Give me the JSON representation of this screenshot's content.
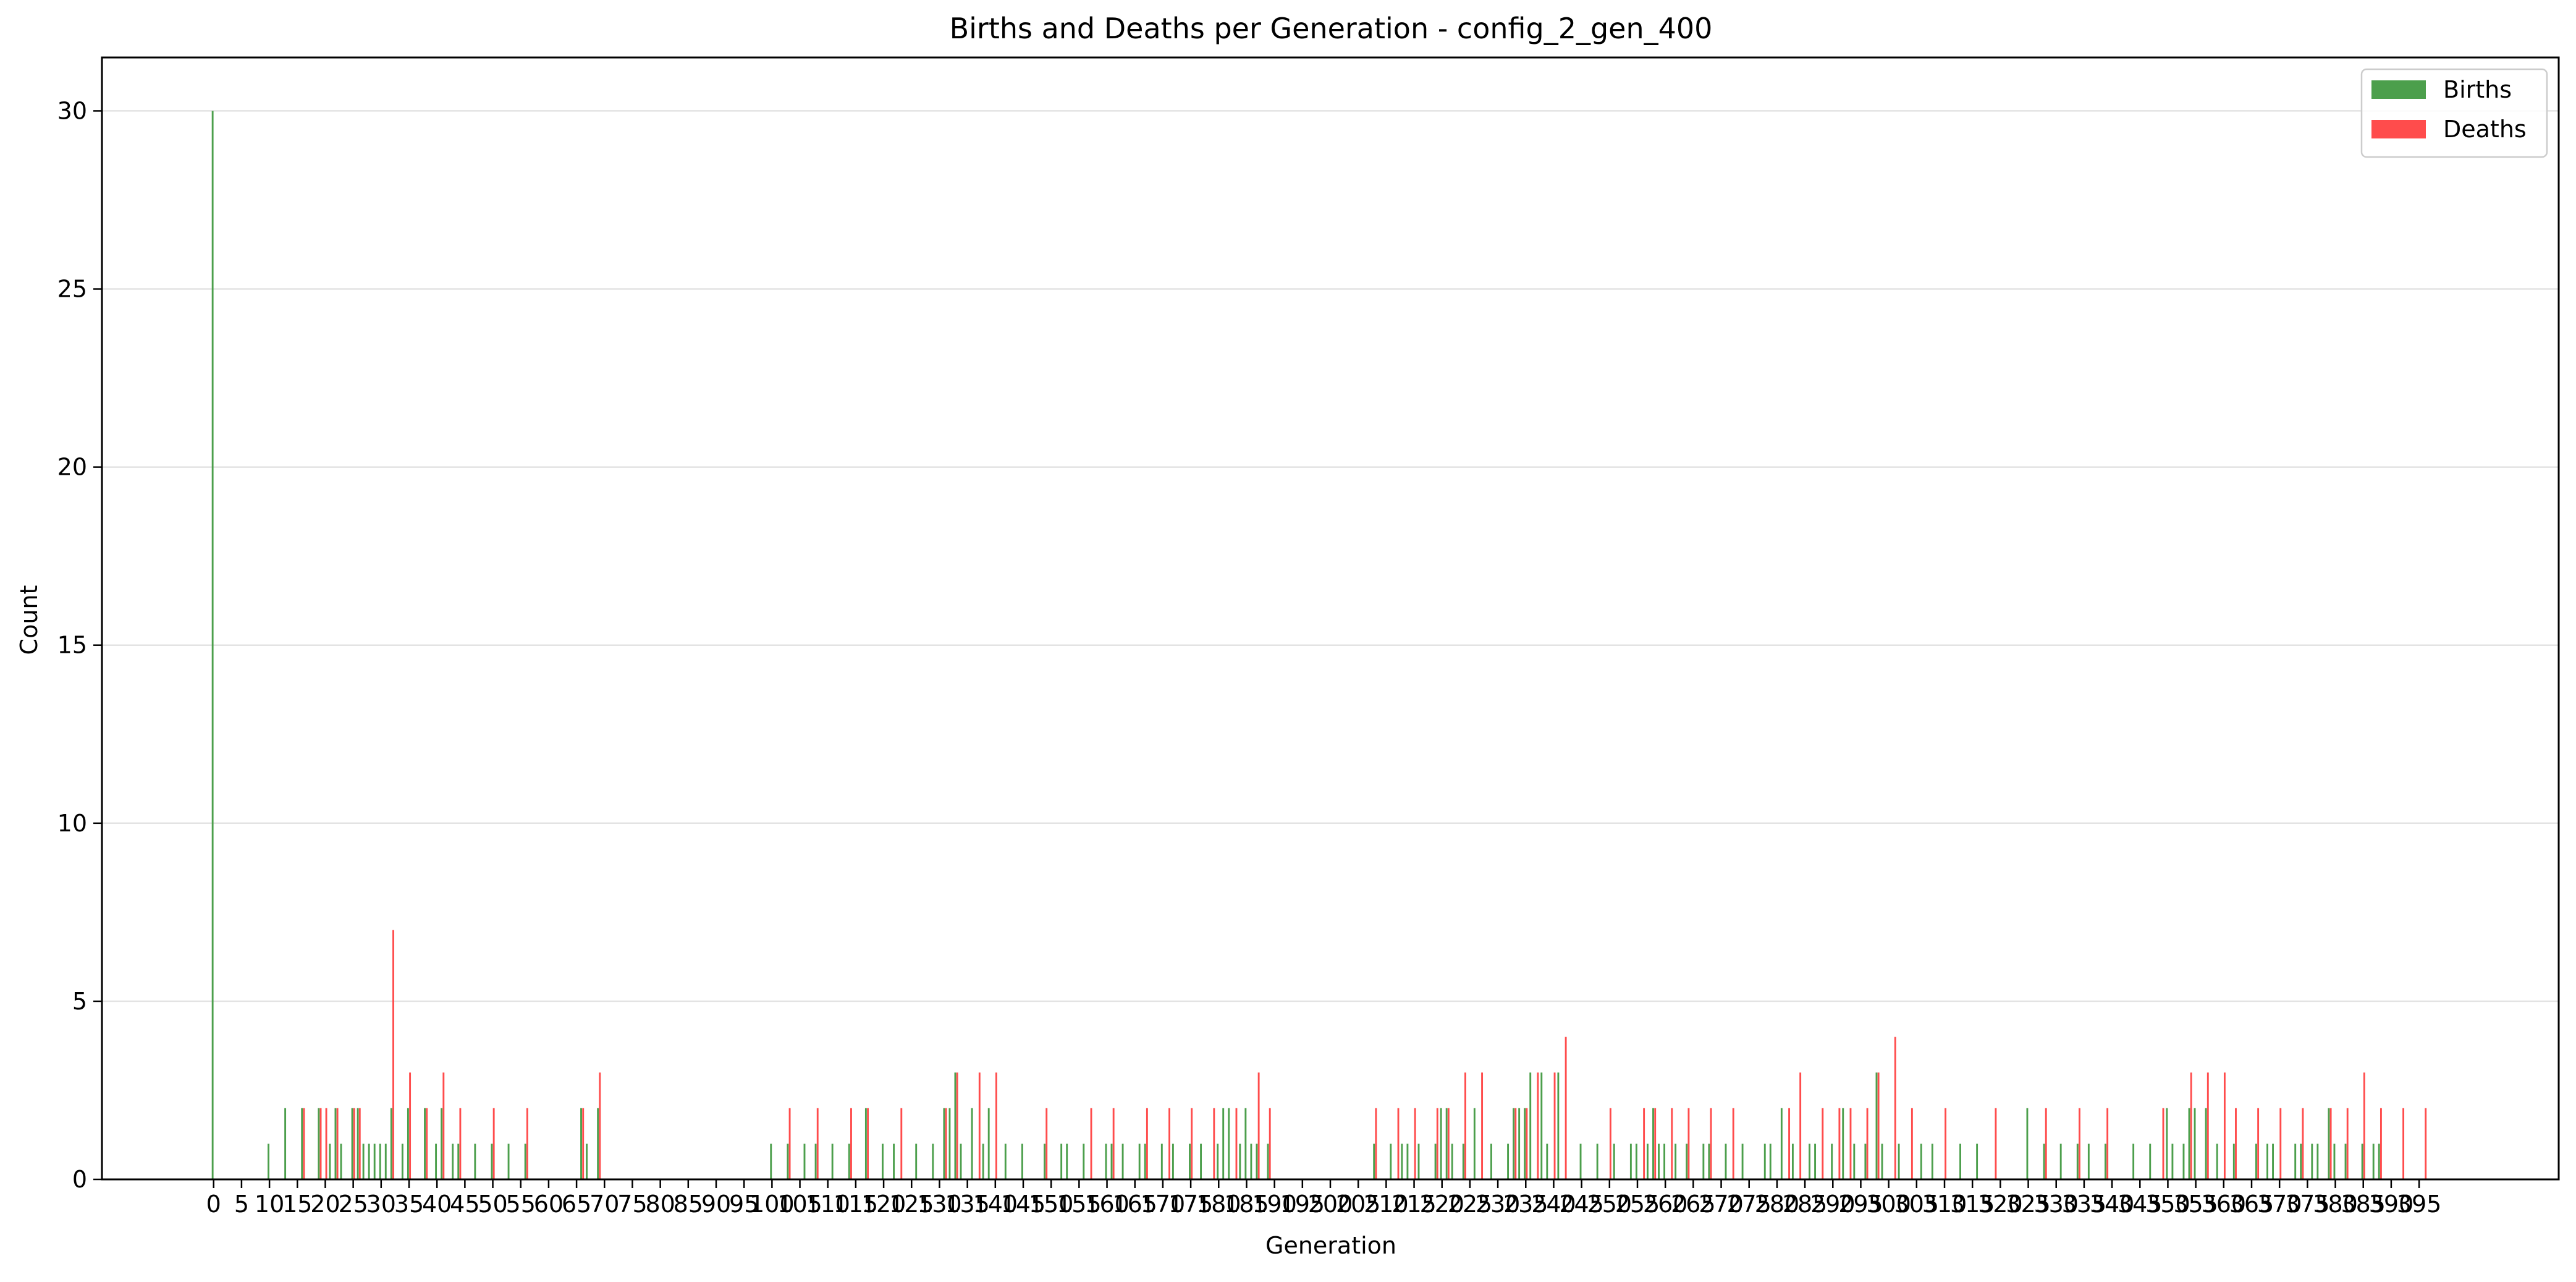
{
  "chart_data": {
    "type": "bar",
    "title": "Births and Deaths per Generation - config_2_gen_400",
    "xlabel": "Generation",
    "ylabel": "Count",
    "xlim": [
      -20,
      420
    ],
    "ylim": [
      0,
      31.5
    ],
    "x_ticks": [
      0,
      5,
      10,
      15,
      20,
      25,
      30,
      35,
      40,
      45,
      50,
      55,
      60,
      65,
      70,
      75,
      80,
      85,
      90,
      95,
      100,
      105,
      110,
      115,
      120,
      125,
      130,
      135,
      140,
      145,
      150,
      155,
      160,
      165,
      170,
      175,
      180,
      185,
      190,
      195,
      200,
      205,
      210,
      215,
      220,
      225,
      230,
      235,
      240,
      245,
      250,
      255,
      260,
      265,
      270,
      275,
      280,
      285,
      290,
      295,
      300,
      305,
      310,
      315,
      320,
      325,
      330,
      335,
      340,
      345,
      350,
      355,
      360,
      365,
      370,
      375,
      380,
      385,
      390,
      395
    ],
    "y_ticks": [
      0,
      5,
      10,
      15,
      20,
      25,
      30
    ],
    "grid": "y",
    "legend_position": "top-right",
    "series": [
      {
        "name": "Births",
        "color": "#4c9f4c",
        "points": [
          [
            0,
            30
          ],
          [
            10,
            1
          ],
          [
            13,
            2
          ],
          [
            16,
            2
          ],
          [
            19,
            2
          ],
          [
            21,
            1
          ],
          [
            22,
            2
          ],
          [
            23,
            1
          ],
          [
            25,
            2
          ],
          [
            26,
            2
          ],
          [
            27,
            1
          ],
          [
            28,
            1
          ],
          [
            29,
            1
          ],
          [
            30,
            1
          ],
          [
            31,
            1
          ],
          [
            32,
            2
          ],
          [
            34,
            1
          ],
          [
            35,
            2
          ],
          [
            38,
            2
          ],
          [
            40,
            1
          ],
          [
            41,
            2
          ],
          [
            43,
            1
          ],
          [
            44,
            1
          ],
          [
            47,
            1
          ],
          [
            50,
            1
          ],
          [
            53,
            1
          ],
          [
            56,
            1
          ],
          [
            66,
            2
          ],
          [
            67,
            1
          ],
          [
            69,
            2
          ],
          [
            100,
            1
          ],
          [
            103,
            1
          ],
          [
            106,
            1
          ],
          [
            108,
            1
          ],
          [
            111,
            1
          ],
          [
            114,
            1
          ],
          [
            117,
            2
          ],
          [
            120,
            1
          ],
          [
            122,
            1
          ],
          [
            126,
            1
          ],
          [
            129,
            1
          ],
          [
            131,
            2
          ],
          [
            132,
            2
          ],
          [
            133,
            3
          ],
          [
            134,
            1
          ],
          [
            136,
            2
          ],
          [
            138,
            1
          ],
          [
            139,
            2
          ],
          [
            142,
            1
          ],
          [
            145,
            1
          ],
          [
            149,
            1
          ],
          [
            152,
            1
          ],
          [
            153,
            1
          ],
          [
            156,
            1
          ],
          [
            160,
            1
          ],
          [
            161,
            1
          ],
          [
            163,
            1
          ],
          [
            166,
            1
          ],
          [
            167,
            1
          ],
          [
            170,
            1
          ],
          [
            172,
            1
          ],
          [
            175,
            1
          ],
          [
            177,
            1
          ],
          [
            180,
            1
          ],
          [
            181,
            2
          ],
          [
            182,
            2
          ],
          [
            184,
            1
          ],
          [
            185,
            2
          ],
          [
            186,
            1
          ],
          [
            187,
            1
          ],
          [
            189,
            1
          ],
          [
            208,
            1
          ],
          [
            211,
            1
          ],
          [
            213,
            1
          ],
          [
            214,
            1
          ],
          [
            216,
            1
          ],
          [
            219,
            1
          ],
          [
            220,
            2
          ],
          [
            221,
            2
          ],
          [
            222,
            1
          ],
          [
            224,
            1
          ],
          [
            226,
            2
          ],
          [
            229,
            1
          ],
          [
            232,
            1
          ],
          [
            233,
            2
          ],
          [
            234,
            2
          ],
          [
            235,
            2
          ],
          [
            236,
            3
          ],
          [
            238,
            3
          ],
          [
            239,
            1
          ],
          [
            241,
            3
          ],
          [
            245,
            1
          ],
          [
            248,
            1
          ],
          [
            251,
            1
          ],
          [
            254,
            1
          ],
          [
            255,
            1
          ],
          [
            257,
            1
          ],
          [
            258,
            2
          ],
          [
            259,
            1
          ],
          [
            260,
            1
          ],
          [
            262,
            1
          ],
          [
            264,
            1
          ],
          [
            267,
            1
          ],
          [
            268,
            1
          ],
          [
            271,
            1
          ],
          [
            274,
            1
          ],
          [
            278,
            1
          ],
          [
            279,
            1
          ],
          [
            281,
            2
          ],
          [
            283,
            1
          ],
          [
            286,
            1
          ],
          [
            287,
            1
          ],
          [
            290,
            1
          ],
          [
            292,
            2
          ],
          [
            294,
            1
          ],
          [
            296,
            1
          ],
          [
            298,
            3
          ],
          [
            299,
            1
          ],
          [
            302,
            1
          ],
          [
            306,
            1
          ],
          [
            308,
            1
          ],
          [
            313,
            1
          ],
          [
            316,
            1
          ],
          [
            325,
            2
          ],
          [
            328,
            1
          ],
          [
            331,
            1
          ],
          [
            334,
            1
          ],
          [
            336,
            1
          ],
          [
            339,
            1
          ],
          [
            344,
            1
          ],
          [
            347,
            1
          ],
          [
            350,
            2
          ],
          [
            351,
            1
          ],
          [
            353,
            1
          ],
          [
            354,
            2
          ],
          [
            355,
            2
          ],
          [
            357,
            2
          ],
          [
            359,
            1
          ],
          [
            362,
            1
          ],
          [
            366,
            1
          ],
          [
            368,
            1
          ],
          [
            369,
            1
          ],
          [
            373,
            1
          ],
          [
            374,
            1
          ],
          [
            376,
            1
          ],
          [
            377,
            1
          ],
          [
            379,
            2
          ],
          [
            380,
            1
          ],
          [
            382,
            1
          ],
          [
            385,
            1
          ],
          [
            387,
            1
          ],
          [
            388,
            1
          ]
        ]
      },
      {
        "name": "Deaths",
        "color": "#ff4c4c",
        "points": [
          [
            16,
            2
          ],
          [
            19,
            2
          ],
          [
            20,
            2
          ],
          [
            22,
            2
          ],
          [
            25,
            2
          ],
          [
            26,
            2
          ],
          [
            32,
            7
          ],
          [
            35,
            3
          ],
          [
            38,
            2
          ],
          [
            41,
            3
          ],
          [
            44,
            2
          ],
          [
            50,
            2
          ],
          [
            56,
            2
          ],
          [
            66,
            2
          ],
          [
            69,
            3
          ],
          [
            103,
            2
          ],
          [
            108,
            2
          ],
          [
            114,
            2
          ],
          [
            117,
            2
          ],
          [
            123,
            2
          ],
          [
            131,
            2
          ],
          [
            133,
            3
          ],
          [
            137,
            3
          ],
          [
            140,
            3
          ],
          [
            149,
            2
          ],
          [
            157,
            2
          ],
          [
            161,
            2
          ],
          [
            167,
            2
          ],
          [
            171,
            2
          ],
          [
            175,
            2
          ],
          [
            179,
            2
          ],
          [
            183,
            2
          ],
          [
            187,
            3
          ],
          [
            189,
            2
          ],
          [
            208,
            2
          ],
          [
            212,
            2
          ],
          [
            215,
            2
          ],
          [
            219,
            2
          ],
          [
            221,
            2
          ],
          [
            224,
            3
          ],
          [
            227,
            3
          ],
          [
            233,
            2
          ],
          [
            235,
            2
          ],
          [
            237,
            3
          ],
          [
            240,
            3
          ],
          [
            242,
            4
          ],
          [
            250,
            2
          ],
          [
            256,
            2
          ],
          [
            258,
            2
          ],
          [
            261,
            2
          ],
          [
            264,
            2
          ],
          [
            268,
            2
          ],
          [
            272,
            2
          ],
          [
            282,
            2
          ],
          [
            284,
            3
          ],
          [
            288,
            2
          ],
          [
            291,
            2
          ],
          [
            293,
            2
          ],
          [
            296,
            2
          ],
          [
            298,
            3
          ],
          [
            301,
            4
          ],
          [
            304,
            2
          ],
          [
            310,
            2
          ],
          [
            319,
            2
          ],
          [
            328,
            2
          ],
          [
            334,
            2
          ],
          [
            339,
            2
          ],
          [
            349,
            2
          ],
          [
            354,
            3
          ],
          [
            357,
            3
          ],
          [
            360,
            3
          ],
          [
            362,
            2
          ],
          [
            366,
            2
          ],
          [
            370,
            2
          ],
          [
            374,
            2
          ],
          [
            379,
            2
          ],
          [
            382,
            2
          ],
          [
            385,
            3
          ],
          [
            388,
            2
          ],
          [
            392,
            2
          ],
          [
            396,
            2
          ]
        ]
      }
    ]
  }
}
